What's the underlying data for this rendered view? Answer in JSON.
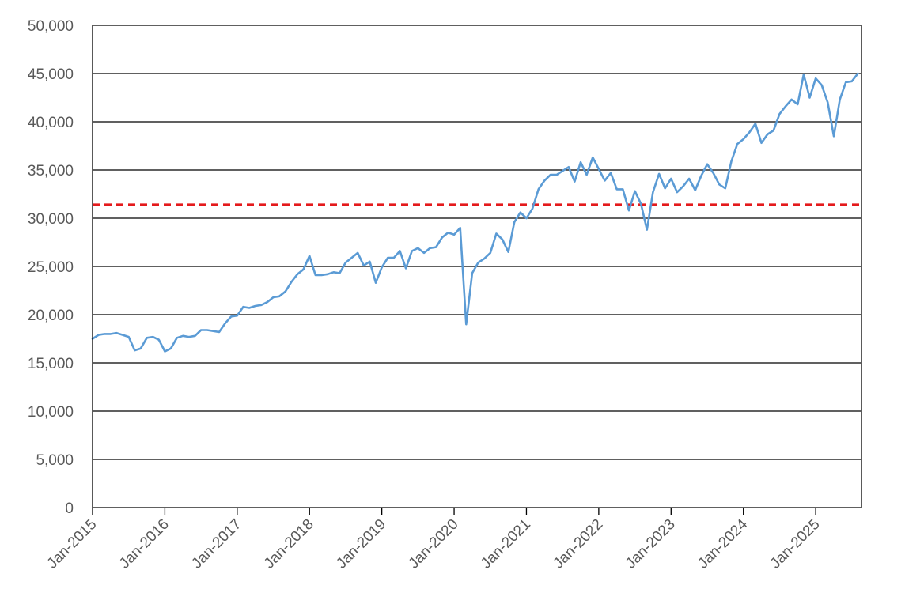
{
  "chart_data": {
    "type": "line",
    "title": "",
    "xlabel": "",
    "ylabel": "",
    "ylim": [
      0,
      50000
    ],
    "yticks": [
      0,
      5000,
      10000,
      15000,
      20000,
      25000,
      30000,
      35000,
      40000,
      45000,
      50000
    ],
    "ytick_labels": [
      "0",
      "5,000",
      "10,000",
      "15,000",
      "20,000",
      "25,000",
      "30,000",
      "35,000",
      "40,000",
      "45,000",
      "50,000"
    ],
    "xlim": [
      "2015-01",
      "2025-08"
    ],
    "xticks": [
      "2015-01",
      "2016-01",
      "2017-01",
      "2018-01",
      "2019-01",
      "2020-01",
      "2021-01",
      "2022-01",
      "2023-01",
      "2024-01",
      "2025-01"
    ],
    "xtick_labels": [
      "Jan-2015",
      "Jan-2016",
      "Jan-2017",
      "Jan-2018",
      "Jan-2019",
      "Jan-2020",
      "Jan-2021",
      "Jan-2022",
      "Jan-2023",
      "Jan-2024",
      "Jan-2025"
    ],
    "grid": "horizontal",
    "legend": "none",
    "series": [
      {
        "color": "#5b9bd5",
        "points": [
          [
            "2015-01",
            17500
          ],
          [
            "2015-02",
            17900
          ],
          [
            "2015-03",
            18000
          ],
          [
            "2015-04",
            18000
          ],
          [
            "2015-05",
            18100
          ],
          [
            "2015-06",
            17900
          ],
          [
            "2015-07",
            17700
          ],
          [
            "2015-08",
            16300
          ],
          [
            "2015-09",
            16500
          ],
          [
            "2015-10",
            17600
          ],
          [
            "2015-11",
            17700
          ],
          [
            "2015-12",
            17400
          ],
          [
            "2016-01",
            16200
          ],
          [
            "2016-02",
            16500
          ],
          [
            "2016-03",
            17600
          ],
          [
            "2016-04",
            17800
          ],
          [
            "2016-05",
            17700
          ],
          [
            "2016-06",
            17800
          ],
          [
            "2016-07",
            18400
          ],
          [
            "2016-08",
            18400
          ],
          [
            "2016-09",
            18300
          ],
          [
            "2016-10",
            18200
          ],
          [
            "2016-11",
            19100
          ],
          [
            "2016-12",
            19800
          ],
          [
            "2017-01",
            19900
          ],
          [
            "2017-02",
            20800
          ],
          [
            "2017-03",
            20700
          ],
          [
            "2017-04",
            20900
          ],
          [
            "2017-05",
            21000
          ],
          [
            "2017-06",
            21300
          ],
          [
            "2017-07",
            21800
          ],
          [
            "2017-08",
            21900
          ],
          [
            "2017-09",
            22400
          ],
          [
            "2017-10",
            23400
          ],
          [
            "2017-11",
            24200
          ],
          [
            "2017-12",
            24700
          ],
          [
            "2018-01",
            26100
          ],
          [
            "2018-02",
            24100
          ],
          [
            "2018-03",
            24100
          ],
          [
            "2018-04",
            24200
          ],
          [
            "2018-05",
            24400
          ],
          [
            "2018-06",
            24300
          ],
          [
            "2018-07",
            25400
          ],
          [
            "2018-08",
            25900
          ],
          [
            "2018-09",
            26400
          ],
          [
            "2018-10",
            25100
          ],
          [
            "2018-11",
            25500
          ],
          [
            "2018-12",
            23300
          ],
          [
            "2019-01",
            24900
          ],
          [
            "2019-02",
            25900
          ],
          [
            "2019-03",
            25900
          ],
          [
            "2019-04",
            26600
          ],
          [
            "2019-05",
            24800
          ],
          [
            "2019-06",
            26600
          ],
          [
            "2019-07",
            26900
          ],
          [
            "2019-08",
            26400
          ],
          [
            "2019-09",
            26900
          ],
          [
            "2019-10",
            27000
          ],
          [
            "2019-11",
            28000
          ],
          [
            "2019-12",
            28500
          ],
          [
            "2020-01",
            28300
          ],
          [
            "2020-02",
            29000
          ],
          [
            "2020-03",
            19000
          ],
          [
            "2020-04",
            24300
          ],
          [
            "2020-05",
            25400
          ],
          [
            "2020-06",
            25800
          ],
          [
            "2020-07",
            26400
          ],
          [
            "2020-08",
            28400
          ],
          [
            "2020-09",
            27800
          ],
          [
            "2020-10",
            26500
          ],
          [
            "2020-11",
            29600
          ],
          [
            "2020-12",
            30600
          ],
          [
            "2021-01",
            30000
          ],
          [
            "2021-02",
            31000
          ],
          [
            "2021-03",
            33000
          ],
          [
            "2021-04",
            33900
          ],
          [
            "2021-05",
            34500
          ],
          [
            "2021-06",
            34500
          ],
          [
            "2021-07",
            34900
          ],
          [
            "2021-08",
            35300
          ],
          [
            "2021-09",
            33800
          ],
          [
            "2021-10",
            35800
          ],
          [
            "2021-11",
            34500
          ],
          [
            "2021-12",
            36300
          ],
          [
            "2022-01",
            35100
          ],
          [
            "2022-02",
            33900
          ],
          [
            "2022-03",
            34700
          ],
          [
            "2022-04",
            33000
          ],
          [
            "2022-05",
            33000
          ],
          [
            "2022-06",
            30800
          ],
          [
            "2022-07",
            32800
          ],
          [
            "2022-08",
            31500
          ],
          [
            "2022-09",
            28800
          ],
          [
            "2022-10",
            32700
          ],
          [
            "2022-11",
            34600
          ],
          [
            "2022-12",
            33100
          ],
          [
            "2023-01",
            34100
          ],
          [
            "2023-02",
            32700
          ],
          [
            "2023-03",
            33300
          ],
          [
            "2023-04",
            34100
          ],
          [
            "2023-05",
            32900
          ],
          [
            "2023-06",
            34400
          ],
          [
            "2023-07",
            35600
          ],
          [
            "2023-08",
            34700
          ],
          [
            "2023-09",
            33500
          ],
          [
            "2023-10",
            33100
          ],
          [
            "2023-11",
            35900
          ],
          [
            "2023-12",
            37700
          ],
          [
            "2024-01",
            38200
          ],
          [
            "2024-02",
            38900
          ],
          [
            "2024-03",
            39800
          ],
          [
            "2024-04",
            37800
          ],
          [
            "2024-05",
            38700
          ],
          [
            "2024-06",
            39100
          ],
          [
            "2024-07",
            40800
          ],
          [
            "2024-08",
            41600
          ],
          [
            "2024-09",
            42300
          ],
          [
            "2024-10",
            41800
          ],
          [
            "2024-11",
            44900
          ],
          [
            "2024-12",
            42500
          ],
          [
            "2025-01",
            44500
          ],
          [
            "2025-02",
            43800
          ],
          [
            "2025-03",
            42000
          ],
          [
            "2025-04",
            38500
          ],
          [
            "2025-05",
            42300
          ],
          [
            "2025-06",
            44100
          ],
          [
            "2025-07",
            44200
          ],
          [
            "2025-08",
            45000
          ]
        ]
      }
    ],
    "reference_line": {
      "y": 31400,
      "color": "#e41a1c",
      "style": "dashed"
    }
  }
}
